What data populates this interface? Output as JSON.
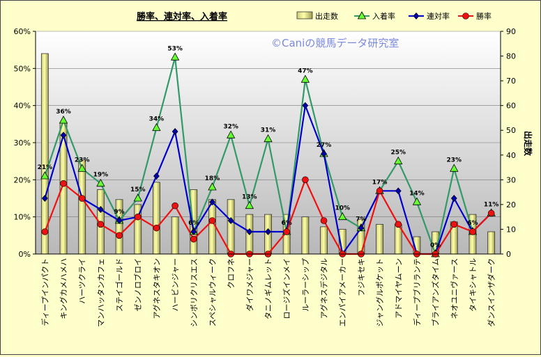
{
  "chart_data": {
    "type": "bar+line",
    "title": "勝率、連対率、入着率",
    "watermark": "©Caniの競馬データ研究室",
    "y_left_label": "",
    "y_right_label": "出走数",
    "y_left_ticks": [
      "0%",
      "10%",
      "20%",
      "30%",
      "40%",
      "50%",
      "60%"
    ],
    "y_right_ticks": [
      "0",
      "10",
      "20",
      "30",
      "40",
      "50",
      "60",
      "70",
      "80",
      "90"
    ],
    "ylim_left": [
      0,
      60
    ],
    "ylim_right": [
      0,
      90
    ],
    "legend_position": "top-right",
    "categories": [
      "ディープインパクト",
      "キングカメハメハ",
      "ハーツクライ",
      "マンハッタンカフェ",
      "ステイゴールド",
      "ゼンノロブロイ",
      "アグネスタキオン",
      "ハービンジャー",
      "シンボリクリスエス",
      "スペシャルウィーク",
      "クロフネ",
      "ダイワメジャー",
      "タニノギムレット",
      "ロージズインメイ",
      "ルーラーシップ",
      "アグネスデジタル",
      "エンパイアメーカー",
      "フジキセキ",
      "ジャングルポケット",
      "アドマイヤムーン",
      "ディープブリランテ",
      "ブライアンズタイム",
      "ネオユニヴァース",
      "タイキシャトル",
      "ダンスインザダーク"
    ],
    "series": [
      {
        "name": "出走数",
        "kind": "bar",
        "axis": "right",
        "color": "#ffff99",
        "values": [
          81,
          53,
          38,
          26,
          22,
          20,
          29,
          15,
          26,
          22,
          22,
          16,
          16,
          16,
          15,
          11,
          10,
          14,
          12,
          12,
          7,
          9,
          13,
          16,
          9
        ]
      },
      {
        "name": "入着率",
        "kind": "line",
        "axis": "left",
        "color": "#339966",
        "values": [
          21,
          36,
          23,
          19,
          9,
          15,
          34,
          53,
          6,
          18,
          32,
          13,
          31,
          6,
          47,
          27,
          10,
          7,
          17,
          25,
          14,
          0,
          23,
          6,
          11
        ]
      },
      {
        "name": "連対率",
        "kind": "line",
        "axis": "left",
        "color": "#0000cc",
        "values": [
          15,
          32,
          15,
          12,
          9,
          10,
          21,
          33,
          6,
          14,
          9,
          6,
          6,
          6,
          40,
          27,
          0,
          7,
          17,
          17,
          0,
          0,
          15,
          6,
          11
        ]
      },
      {
        "name": "勝率",
        "kind": "line",
        "axis": "left",
        "color": "#ee1111",
        "values": [
          6,
          19,
          15,
          8,
          5,
          10,
          7,
          13,
          4,
          9,
          0,
          0,
          0,
          6,
          20,
          9,
          0,
          0,
          17,
          8,
          0,
          0,
          8,
          6,
          11
        ]
      }
    ],
    "data_labels_series": "入着率",
    "data_labels": [
      "21%",
      "36%",
      "23%",
      "19%",
      "9%",
      "15%",
      "34%",
      "53%",
      "6%",
      "18%",
      "32%",
      "13%",
      "31%",
      "6%",
      "47%",
      "27%",
      "10%",
      "7%",
      "17%",
      "25%",
      "14%",
      "0%",
      "23%",
      "6%",
      "11%"
    ],
    "grid": "horizontal"
  }
}
